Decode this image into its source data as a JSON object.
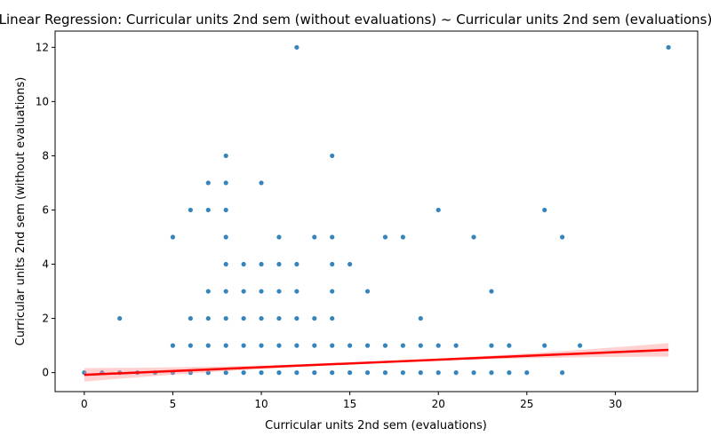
{
  "chart_data": {
    "type": "scatter",
    "title": "Linear Regression: Curricular units 2nd sem (without evaluations) ~ Curricular units 2nd sem (evaluations)",
    "xlabel": "Curricular units 2nd sem (evaluations)",
    "ylabel": "Curricular units 2nd sem (without evaluations)",
    "xlim": [
      -1.65,
      34.65
    ],
    "ylim": [
      -0.7,
      12.6
    ],
    "xticks": [
      0,
      5,
      10,
      15,
      20,
      25,
      30
    ],
    "yticks": [
      0,
      2,
      4,
      6,
      8,
      10,
      12
    ],
    "grid": false,
    "point_color": "#1f77b4",
    "line_color": "#ff0000",
    "band_color": "#ff9999",
    "points": [
      [
        0,
        0
      ],
      [
        1,
        0
      ],
      [
        2,
        0
      ],
      [
        3,
        0
      ],
      [
        4,
        0
      ],
      [
        5,
        0
      ],
      [
        6,
        0
      ],
      [
        7,
        0
      ],
      [
        8,
        0
      ],
      [
        9,
        0
      ],
      [
        10,
        0
      ],
      [
        11,
        0
      ],
      [
        12,
        0
      ],
      [
        13,
        0
      ],
      [
        14,
        0
      ],
      [
        15,
        0
      ],
      [
        16,
        0
      ],
      [
        17,
        0
      ],
      [
        18,
        0
      ],
      [
        19,
        0
      ],
      [
        20,
        0
      ],
      [
        21,
        0
      ],
      [
        22,
        0
      ],
      [
        23,
        0
      ],
      [
        24,
        0
      ],
      [
        25,
        0
      ],
      [
        27,
        0
      ],
      [
        5,
        1
      ],
      [
        6,
        1
      ],
      [
        7,
        1
      ],
      [
        8,
        1
      ],
      [
        9,
        1
      ],
      [
        10,
        1
      ],
      [
        11,
        1
      ],
      [
        12,
        1
      ],
      [
        13,
        1
      ],
      [
        14,
        1
      ],
      [
        15,
        1
      ],
      [
        16,
        1
      ],
      [
        17,
        1
      ],
      [
        18,
        1
      ],
      [
        19,
        1
      ],
      [
        20,
        1
      ],
      [
        21,
        1
      ],
      [
        23,
        1
      ],
      [
        24,
        1
      ],
      [
        26,
        1
      ],
      [
        28,
        1
      ],
      [
        2,
        2
      ],
      [
        6,
        2
      ],
      [
        7,
        2
      ],
      [
        8,
        2
      ],
      [
        9,
        2
      ],
      [
        10,
        2
      ],
      [
        11,
        2
      ],
      [
        12,
        2
      ],
      [
        13,
        2
      ],
      [
        14,
        2
      ],
      [
        19,
        2
      ],
      [
        7,
        3
      ],
      [
        8,
        3
      ],
      [
        9,
        3
      ],
      [
        10,
        3
      ],
      [
        11,
        3
      ],
      [
        12,
        3
      ],
      [
        14,
        3
      ],
      [
        16,
        3
      ],
      [
        23,
        3
      ],
      [
        8,
        4
      ],
      [
        9,
        4
      ],
      [
        10,
        4
      ],
      [
        11,
        4
      ],
      [
        12,
        4
      ],
      [
        14,
        4
      ],
      [
        15,
        4
      ],
      [
        5,
        5
      ],
      [
        8,
        5
      ],
      [
        11,
        5
      ],
      [
        13,
        5
      ],
      [
        14,
        5
      ],
      [
        17,
        5
      ],
      [
        18,
        5
      ],
      [
        22,
        5
      ],
      [
        27,
        5
      ],
      [
        6,
        6
      ],
      [
        7,
        6
      ],
      [
        8,
        6
      ],
      [
        20,
        6
      ],
      [
        26,
        6
      ],
      [
        7,
        7
      ],
      [
        8,
        7
      ],
      [
        10,
        7
      ],
      [
        8,
        8
      ],
      [
        14,
        8
      ],
      [
        12,
        12
      ],
      [
        33,
        12
      ]
    ],
    "regression": {
      "x_range": [
        0,
        33
      ],
      "intercept": -0.08,
      "slope": 0.0279,
      "ci_half_width_at_max": 0.25
    }
  }
}
